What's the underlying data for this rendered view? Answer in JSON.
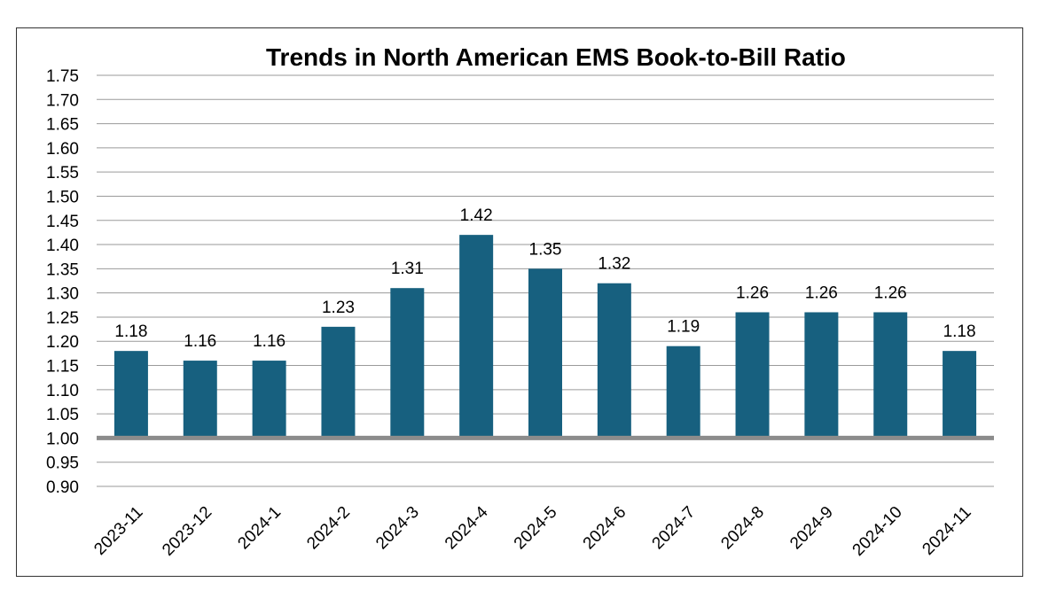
{
  "chart_data": {
    "type": "bar",
    "title": "Trends in North American EMS Book-to-Bill Ratio",
    "xlabel": "",
    "ylabel": "",
    "categories": [
      "2023-11",
      "2023-12",
      "2024-1",
      "2024-2",
      "2024-3",
      "2024-4",
      "2024-5",
      "2024-6",
      "2024-7",
      "2024-8",
      "2024-9",
      "2024-10",
      "2024-11"
    ],
    "values": [
      1.18,
      1.16,
      1.16,
      1.23,
      1.31,
      1.42,
      1.35,
      1.32,
      1.19,
      1.26,
      1.26,
      1.26,
      1.18
    ],
    "data_labels": [
      "1.18",
      "1.16",
      "1.16",
      "1.23",
      "1.31",
      "1.42",
      "1.35",
      "1.32",
      "1.19",
      "1.26",
      "1.26",
      "1.26",
      "1.18"
    ],
    "yticks": [
      "0.90",
      "0.95",
      "1.00",
      "1.05",
      "1.10",
      "1.15",
      "1.20",
      "1.25",
      "1.30",
      "1.35",
      "1.40",
      "1.45",
      "1.50",
      "1.55",
      "1.60",
      "1.65",
      "1.70",
      "1.75"
    ],
    "ylim": [
      0.9,
      1.75
    ],
    "baseline": 1.0,
    "grid": true,
    "legend": "none",
    "colors": {
      "bar": "#17607f",
      "baseline": "#8c8c8c",
      "grid": "#9a9a9a"
    }
  }
}
